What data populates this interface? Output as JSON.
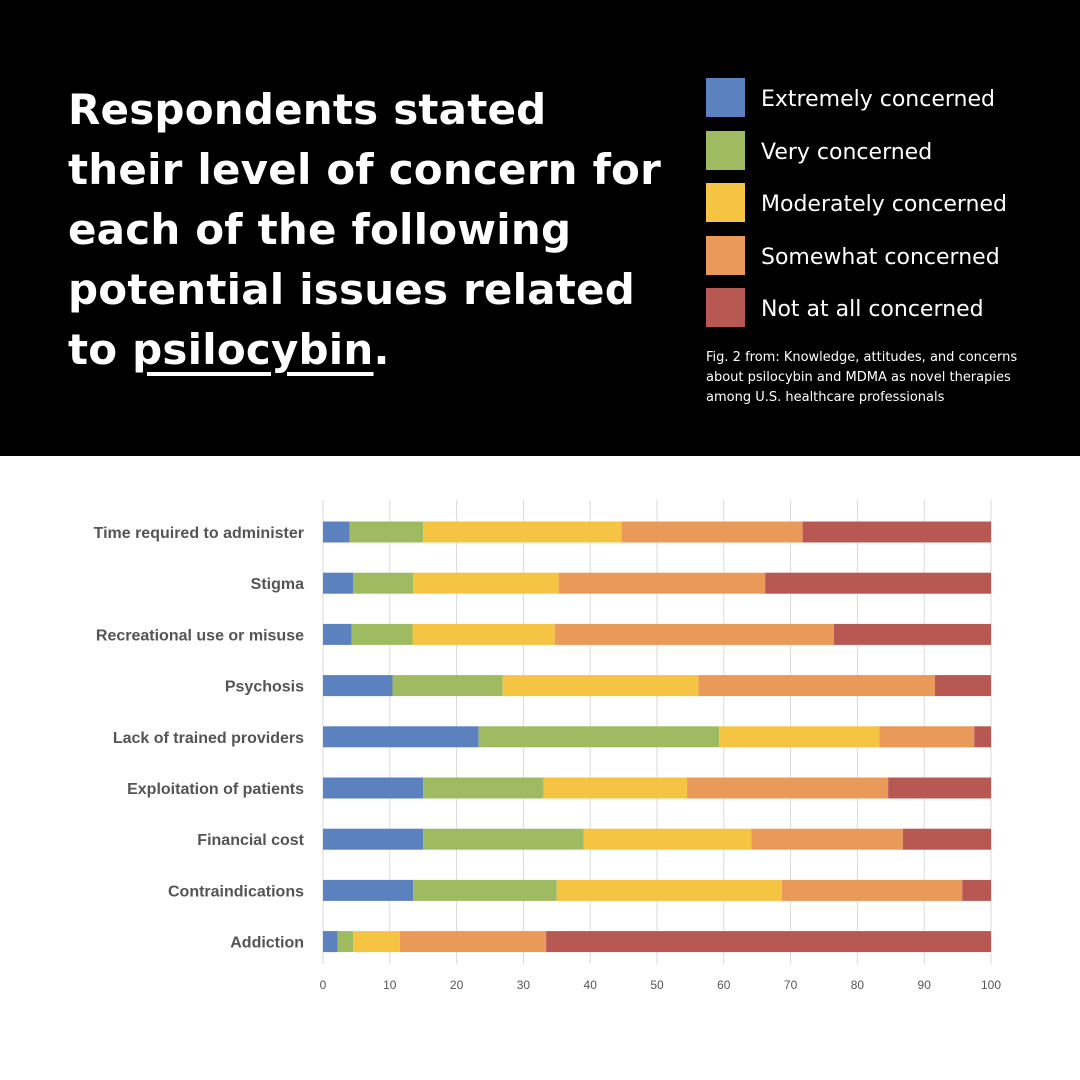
{
  "header": {
    "headline_main": "Respondents stated their level of concern for each of the following potential issues related to ",
    "headline_term": "psilocybin",
    "headline_end": ".",
    "caption": "Fig. 2 from: Knowledge, attitudes, and concerns about psilocybin and MDMA as novel therapies among U.S. healthcare professionals"
  },
  "legend": [
    {
      "label": "Extremely concerned",
      "color": "#5b81bf"
    },
    {
      "label": "Very concerned",
      "color": "#9fbb62"
    },
    {
      "label": "Moderately concerned",
      "color": "#f6c443"
    },
    {
      "label": "Somewhat concerned",
      "color": "#e99a58"
    },
    {
      "label": "Not at all concerned",
      "color": "#b75853"
    }
  ],
  "chart_data": {
    "type": "bar",
    "orientation": "horizontal",
    "stacked": true,
    "categories": [
      "Time required to administer",
      "Stigma",
      "Recreational use or misuse",
      "Psychosis",
      "Lack of trained providers",
      "Exploitation of patients",
      "Financial cost",
      "Contraindications",
      "Addiction"
    ],
    "series": [
      {
        "name": "Extremely concerned",
        "color": "#5b81bf",
        "values": [
          4,
          4.5,
          4.3,
          10.4,
          23.3,
          15,
          15,
          13.5,
          2.2
        ]
      },
      {
        "name": "Very concerned",
        "color": "#9fbb62",
        "values": [
          11,
          9,
          9.1,
          16.5,
          36,
          18,
          24,
          21.5,
          2.3
        ]
      },
      {
        "name": "Moderately concerned",
        "color": "#f6c443",
        "values": [
          29.7,
          21.8,
          21.3,
          29.3,
          24,
          21.5,
          25.1,
          33.7,
          7
        ]
      },
      {
        "name": "Somewhat concerned",
        "color": "#e99a58",
        "values": [
          27.1,
          30.9,
          41.8,
          35.4,
          14.2,
          30.1,
          22.7,
          27,
          21.9
        ]
      },
      {
        "name": "Not at all concerned",
        "color": "#b75853",
        "values": [
          28.2,
          33.8,
          23.5,
          8.4,
          2.5,
          15.4,
          13.2,
          4.3,
          66.6
        ]
      }
    ],
    "xlim": [
      0,
      100
    ],
    "xticks": [
      0,
      10,
      20,
      30,
      40,
      50,
      60,
      70,
      80,
      90,
      100
    ],
    "grid": true,
    "legend_position": "top-right"
  }
}
